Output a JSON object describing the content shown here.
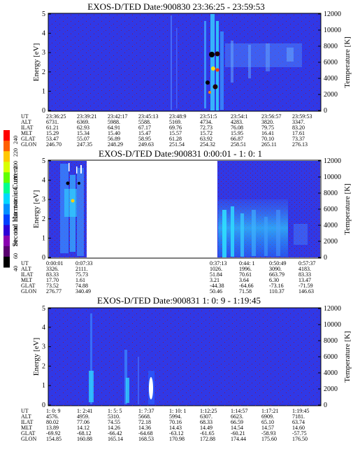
{
  "chart_data": [
    {
      "type": "heatmap",
      "title": "EXOS-D/TED   Date:900830  23:36:25 - 23:59:53",
      "ylabel": "Energy [eV]",
      "y2label": "Temperature [K]",
      "ylim": [
        0,
        5
      ],
      "y2lim": [
        0,
        12000
      ],
      "yticks": [
        "0",
        "1",
        "2",
        "3",
        "4",
        "5"
      ],
      "y2ticks": [
        "0",
        "2000",
        "4000",
        "6000",
        "8000",
        "10000",
        "12000"
      ],
      "x_ticks": [
        "23:36:25",
        "23:39:21",
        "23:42:17",
        "23:45:13",
        "23:48:9",
        "23:51:5",
        "23:54:1",
        "23:56:57",
        "23:59:53"
      ],
      "table": [
        {
          "label": "UT",
          "values": [
            "23:36:25",
            "23:39:21",
            "23:42:17",
            "23:45:13",
            "23:48:9",
            "23:51:5",
            "23:54:1",
            "23:56:57",
            "23:59:53"
          ]
        },
        {
          "label": "ALT",
          "values": [
            "6731.",
            "6369.",
            "5988.",
            "5588.",
            "5169.",
            "4734.",
            "4283.",
            "3820.",
            "3347."
          ]
        },
        {
          "label": "ILAT",
          "values": [
            "61.21",
            "62.93",
            "64.91",
            "67.17",
            "69.76",
            "72.73",
            "76.08",
            "79.75",
            "83.20"
          ]
        },
        {
          "label": "MLT",
          "values": [
            "15.29",
            "15.34",
            "15.40",
            "15.47",
            "15.57",
            "15.72",
            "15.95",
            "16.41",
            "17.61"
          ]
        },
        {
          "label": "GLAT",
          "values": [
            "53.47",
            "55.07",
            "56.89",
            "58.95",
            "61.28",
            "63.92",
            "66.87",
            "70.10",
            "73.37"
          ]
        },
        {
          "label": "GLON",
          "values": [
            "246.70",
            "247.35",
            "248.29",
            "249.63",
            "251.54",
            "254.32",
            "258.51",
            "265.11",
            "276.13"
          ]
        }
      ]
    },
    {
      "type": "heatmap",
      "title": "EXOS-D/TED   Date:900831  0:00:01 - 1: 0: 1",
      "ylabel": "Energy [eV]",
      "y2label": "Temperature [K]",
      "ylim": [
        0,
        5
      ],
      "y2lim": [
        0,
        12000
      ],
      "yticks": [
        "0",
        "1",
        "2",
        "3",
        "4",
        "5"
      ],
      "y2ticks": [
        "0",
        "2000",
        "4000",
        "6000",
        "8000",
        "10000",
        "12000"
      ],
      "x_ticks": [
        "0:00:01",
        "0:07:33",
        "0:37:13",
        "0:44: 1",
        "0:50:49",
        "0:57:37"
      ],
      "table": [
        {
          "label": "UT",
          "values": [
            "0:00:01",
            "0:07:33",
            "0:37:13",
            "0:44: 1",
            "0:50:49",
            "0:57:37"
          ]
        },
        {
          "label": "ALT",
          "values": [
            "3326.",
            "2111.",
            "1026.",
            "1996.",
            "3090.",
            "4183."
          ]
        },
        {
          "label": "ILAT",
          "values": [
            "83.33",
            "75.73",
            "51.84",
            "70.61",
            "663.79",
            "83.33"
          ]
        },
        {
          "label": "MLT",
          "values": [
            "17.70",
            "1.61",
            "3.21",
            "3.64",
            "6.30",
            "13.47"
          ]
        },
        {
          "label": "GLAT",
          "values": [
            "73.52",
            "74.88",
            "-44.38",
            "-64.66",
            "-73.16",
            "-71.59"
          ]
        },
        {
          "label": "GLON",
          "values": [
            "276.77",
            "340.49",
            "50.46",
            "71.58",
            "110.37",
            "146.63"
          ]
        }
      ]
    },
    {
      "type": "heatmap",
      "title": "EXOS-D/TED   Date:900831  1: 0: 9 - 1:19:45",
      "ylabel": "Energy [eV]",
      "y2label": "Temperature [K]",
      "ylim": [
        0,
        5
      ],
      "y2lim": [
        0,
        12000
      ],
      "yticks": [
        "0",
        "1",
        "2",
        "3",
        "4",
        "5"
      ],
      "y2ticks": [
        "0",
        "2000",
        "4000",
        "6000",
        "8000",
        "10000",
        "12000"
      ],
      "x_ticks": [
        "1: 0: 9",
        "1: 2:41",
        "1: 5: 5",
        "1: 7:37",
        "1: 10: 1",
        "1:12:25",
        "1:14:57",
        "1:17:21",
        "1:19:45"
      ],
      "table": [
        {
          "label": "UT",
          "values": [
            "1: 0: 9",
            "1: 2:41",
            "1: 5: 5",
            "1: 7:37",
            "1: 10: 1",
            "1:12:25",
            "1:14:57",
            "1:17:21",
            "1:19:45"
          ]
        },
        {
          "label": "ALT",
          "values": [
            "4576.",
            "4959.",
            "5310.",
            "5668.",
            "5994.",
            "6307.",
            "6623.",
            "6909.",
            "7181."
          ]
        },
        {
          "label": "ILAT",
          "values": [
            "80.02",
            "77.06",
            "74.55",
            "72.18",
            "70.16",
            "68.33",
            "66.59",
            "65.10",
            "63.74"
          ]
        },
        {
          "label": "MLT",
          "values": [
            "13.89",
            "14.12",
            "14.26",
            "14.36",
            "14.43",
            "14.49",
            "14.54",
            "14.57",
            "14.60"
          ]
        },
        {
          "label": "GLAT",
          "values": [
            "-69.92",
            "-68.12",
            "-66.42",
            "-64.68",
            "-63.12",
            "-61.65",
            "-60.21",
            "-58.93",
            "-57.75"
          ]
        },
        {
          "label": "GLON",
          "values": [
            "154.85",
            "160.88",
            "165.14",
            "168.53",
            "170.98",
            "172.88",
            "174.44",
            "175.60",
            "176.50"
          ]
        }
      ]
    }
  ],
  "colorbar": {
    "label": "Second Harmonic Current",
    "ticks": [
      "40",
      "60",
      "80",
      "100",
      "120",
      "140",
      "160",
      "180",
      "200",
      "220",
      "240"
    ],
    "colors": [
      "#000000",
      "#5a0070",
      "#8a00b0",
      "#2d00d8",
      "#0040ff",
      "#0090ff",
      "#00d8ff",
      "#00ff90",
      "#60ff00",
      "#d8ff00",
      "#ffc800",
      "#ff6000",
      "#ff0000"
    ]
  }
}
